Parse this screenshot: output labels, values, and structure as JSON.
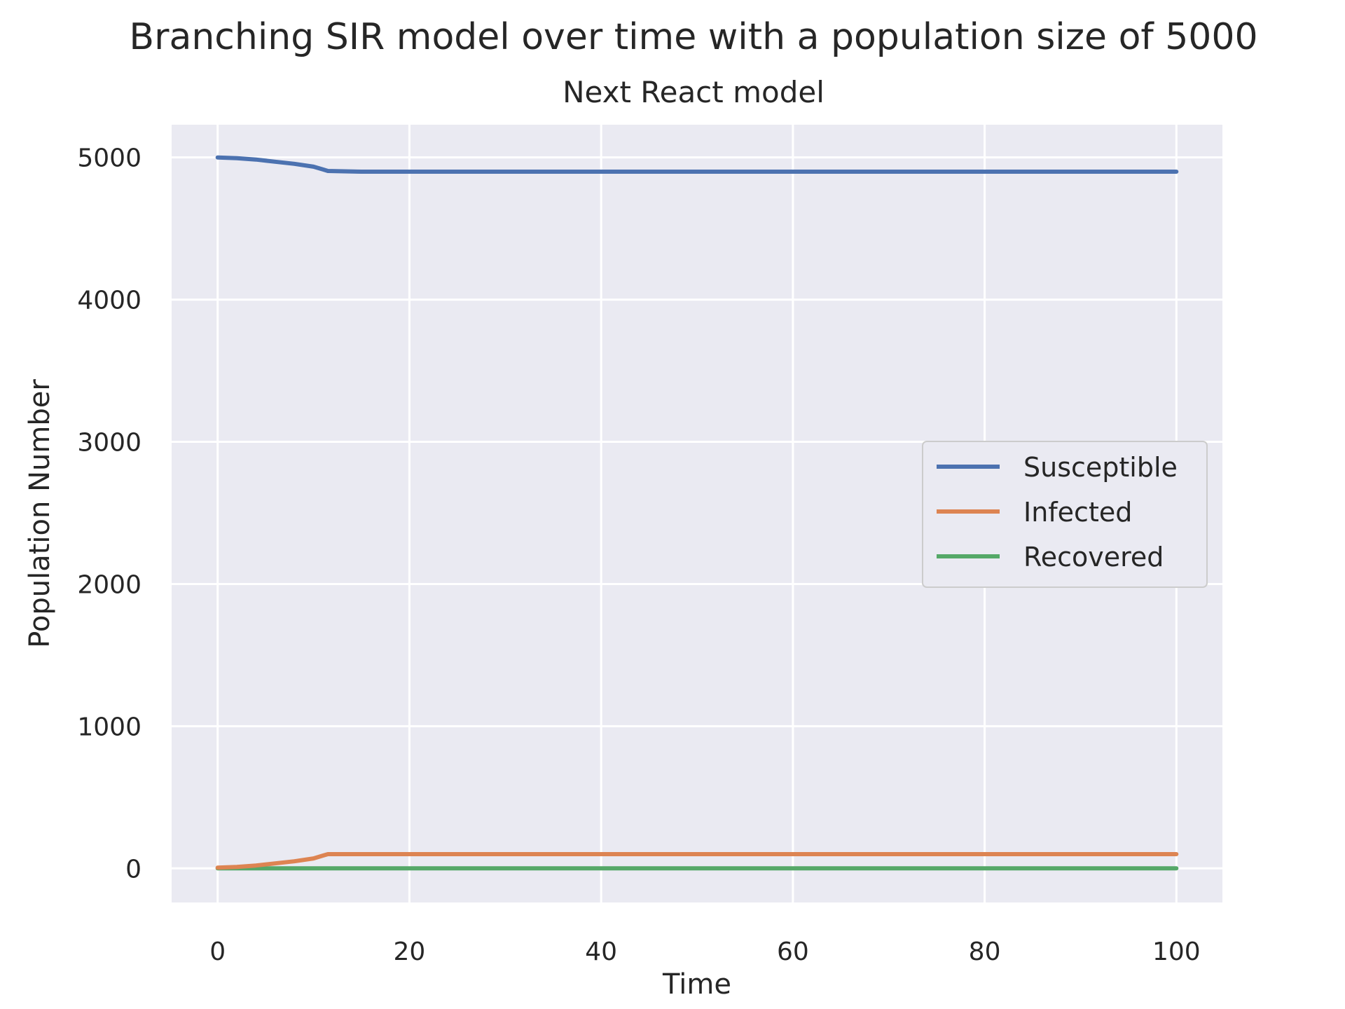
{
  "chart_data": {
    "type": "line",
    "title": "Branching SIR model over time with a population size of 5000",
    "subtitle": "Next React model",
    "xlabel": "Time",
    "ylabel": "Population Number",
    "xlim": [
      -4.8,
      104.8
    ],
    "ylim": [
      -240,
      5230
    ],
    "xticks": [
      0,
      20,
      40,
      60,
      80,
      100
    ],
    "yticks": [
      0,
      1000,
      2000,
      3000,
      4000,
      5000
    ],
    "grid": true,
    "legend_position": "center-right",
    "series": [
      {
        "name": "Susceptible",
        "color": "#4c72b0",
        "x": [
          0,
          2,
          4,
          6,
          8,
          10,
          11,
          11.5,
          15,
          30,
          50,
          70,
          90,
          100
        ],
        "values": [
          5000,
          4995,
          4985,
          4970,
          4955,
          4935,
          4915,
          4905,
          4900,
          4900,
          4900,
          4900,
          4900,
          4900
        ]
      },
      {
        "name": "Infected",
        "color": "#dd8452",
        "x": [
          0,
          2,
          4,
          6,
          8,
          10,
          11,
          11.5,
          15,
          30,
          50,
          70,
          90,
          100
        ],
        "values": [
          5,
          10,
          20,
          35,
          50,
          70,
          90,
          100,
          100,
          100,
          100,
          100,
          100,
          100
        ]
      },
      {
        "name": "Recovered",
        "color": "#55a868",
        "x": [
          0,
          10,
          20,
          40,
          60,
          80,
          100
        ],
        "values": [
          0,
          0,
          0,
          0,
          0,
          0,
          0
        ]
      }
    ]
  }
}
